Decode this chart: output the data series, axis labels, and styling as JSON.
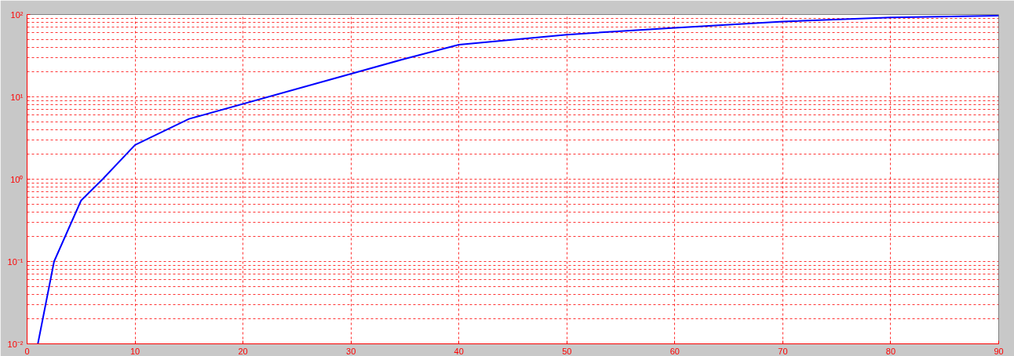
{
  "chart_data": {
    "type": "line",
    "log": true,
    "grid": true,
    "marker": "none",
    "line_style": "solid",
    "x": [
      1,
      2.5,
      5,
      7,
      10,
      15,
      35,
      40,
      50,
      60,
      70,
      80,
      90
    ],
    "series": [
      {
        "color": "#0000ff",
        "values": [
          0.01,
          0.1,
          0.55,
          1.0,
          2.6,
          5.4,
          29,
          43,
          57,
          69,
          82,
          92,
          97
        ]
      }
    ],
    "xlim": [
      0,
      90
    ],
    "xticks": [
      0,
      10,
      20,
      30,
      40,
      50,
      60,
      70,
      80,
      90
    ],
    "ylim": [
      0.01,
      100
    ],
    "yticks": [
      {
        "value": 0.01,
        "label": "10⁻²"
      },
      {
        "value": 0.1,
        "label": "10⁻¹"
      },
      {
        "value": 1,
        "label": "10⁰"
      },
      {
        "value": 10,
        "label": "10¹"
      },
      {
        "value": 100,
        "label": "10²"
      }
    ]
  }
}
